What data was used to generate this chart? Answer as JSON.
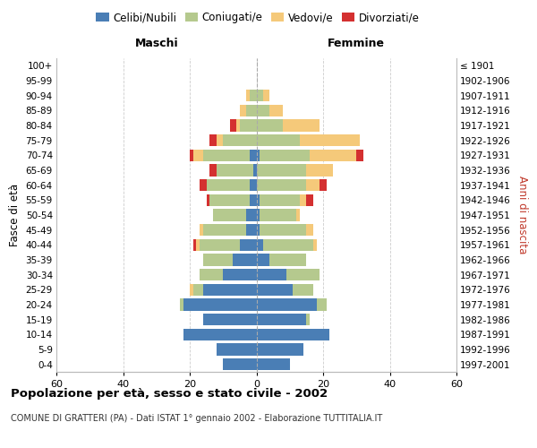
{
  "age_groups": [
    "0-4",
    "5-9",
    "10-14",
    "15-19",
    "20-24",
    "25-29",
    "30-34",
    "35-39",
    "40-44",
    "45-49",
    "50-54",
    "55-59",
    "60-64",
    "65-69",
    "70-74",
    "75-79",
    "80-84",
    "85-89",
    "90-94",
    "95-99",
    "100+"
  ],
  "birth_years": [
    "1997-2001",
    "1992-1996",
    "1987-1991",
    "1982-1986",
    "1977-1981",
    "1972-1976",
    "1967-1971",
    "1962-1966",
    "1957-1961",
    "1952-1956",
    "1947-1951",
    "1942-1946",
    "1937-1941",
    "1932-1936",
    "1927-1931",
    "1922-1926",
    "1917-1921",
    "1912-1916",
    "1907-1911",
    "1902-1906",
    "≤ 1901"
  ],
  "males": {
    "celibe": [
      10,
      12,
      22,
      16,
      22,
      16,
      10,
      7,
      5,
      3,
      3,
      2,
      2,
      1,
      2,
      0,
      0,
      0,
      0,
      0,
      0
    ],
    "coniugato": [
      0,
      0,
      0,
      0,
      1,
      3,
      7,
      9,
      12,
      13,
      10,
      12,
      13,
      11,
      14,
      10,
      5,
      3,
      2,
      0,
      0
    ],
    "vedovo": [
      0,
      0,
      0,
      0,
      0,
      1,
      0,
      0,
      1,
      1,
      0,
      0,
      0,
      0,
      3,
      2,
      1,
      2,
      1,
      0,
      0
    ],
    "divorziato": [
      0,
      0,
      0,
      0,
      0,
      0,
      0,
      0,
      1,
      0,
      0,
      1,
      2,
      2,
      1,
      2,
      2,
      0,
      0,
      0,
      0
    ]
  },
  "females": {
    "nubile": [
      10,
      14,
      22,
      15,
      18,
      11,
      9,
      4,
      2,
      1,
      1,
      1,
      0,
      0,
      1,
      0,
      0,
      0,
      0,
      0,
      0
    ],
    "coniugata": [
      0,
      0,
      0,
      1,
      3,
      6,
      10,
      11,
      15,
      14,
      11,
      12,
      15,
      15,
      15,
      13,
      8,
      4,
      2,
      0,
      0
    ],
    "vedova": [
      0,
      0,
      0,
      0,
      0,
      0,
      0,
      0,
      1,
      2,
      1,
      2,
      4,
      8,
      14,
      18,
      11,
      4,
      2,
      0,
      0
    ],
    "divorziata": [
      0,
      0,
      0,
      0,
      0,
      0,
      0,
      0,
      0,
      0,
      0,
      2,
      2,
      0,
      2,
      0,
      0,
      0,
      0,
      0,
      0
    ]
  },
  "colors": {
    "celibe_nubile": "#4a7eb5",
    "coniugato_a": "#b5c98e",
    "vedovo_a": "#f5c97a",
    "divorziato_a": "#d43030"
  },
  "xlim": 60,
  "title_main": "Popolazione per età, sesso e stato civile - 2002",
  "title_sub": "COMUNE DI GRATTERI (PA) - Dati ISTAT 1° gennaio 2002 - Elaborazione TUTTITALIA.IT",
  "ylabel_left": "Fasce di età",
  "ylabel_right": "Anni di nascita",
  "xlabel_maschi": "Maschi",
  "xlabel_femmine": "Femmine",
  "legend_labels": [
    "Celibi/Nubili",
    "Coniugati/e",
    "Vedovi/e",
    "Divorziati/e"
  ],
  "background_color": "#ffffff",
  "grid_color": "#cccccc"
}
